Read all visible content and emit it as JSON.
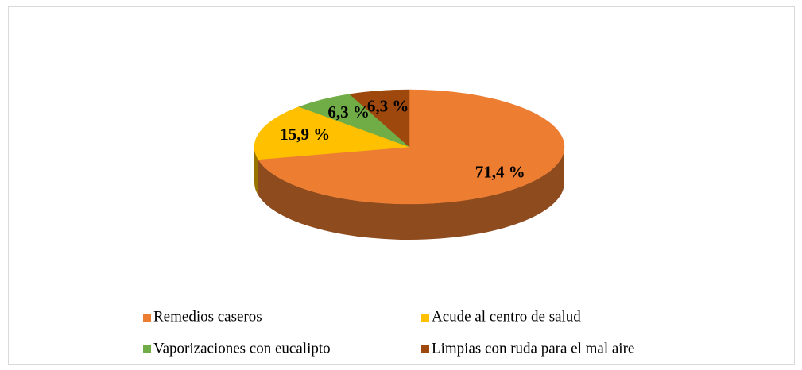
{
  "chart_data": {
    "type": "pie3d",
    "categories": [
      "Remedios caseros",
      "Acude al centro de salud",
      "Vaporizaciones con eucalipto",
      "Limpias con ruda para el mal aire"
    ],
    "values": [
      71.4,
      15.9,
      6.3,
      6.3
    ],
    "value_labels": [
      "71,4 %",
      "15,9 %",
      "6,3 %",
      "6,3 %"
    ],
    "colors": [
      "#ED7D31",
      "#FFC000",
      "#70AD47",
      "#9E480E"
    ],
    "legend": "bottom"
  }
}
